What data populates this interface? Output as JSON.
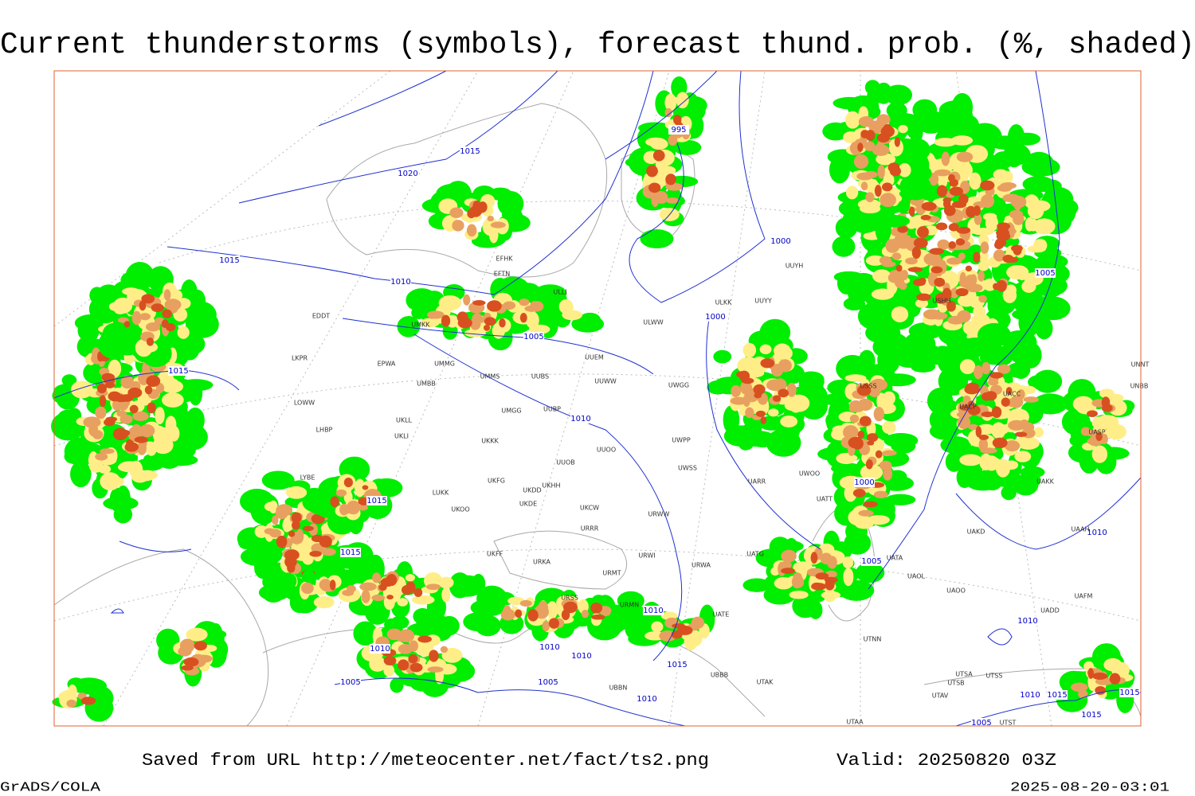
{
  "title": "Current thunderstorms (symbols), forecast thund. prob. (%, shaded)",
  "footer": {
    "source": "Saved from URL http://meteocenter.net/fact/ts2.png",
    "valid": "Valid: 20250820 03Z",
    "software": "GrADS/COLA",
    "timestamp": "2025-08-20-03:01"
  },
  "isobar_labels": [
    "995",
    "1015",
    "1020",
    "1015",
    "1010",
    "1005",
    "1000",
    "1000",
    "1010",
    "1015",
    "1015",
    "1015",
    "1000",
    "1005",
    "1005",
    "1010",
    "1010",
    "1010",
    "1010",
    "1010",
    "1005",
    "1005",
    "1015",
    "1010",
    "1010",
    "1010",
    "1015",
    "1015",
    "1015",
    "1005"
  ],
  "stations": [
    "EDDT",
    "EPWA",
    "UMMG",
    "UMBB",
    "LKPR",
    "LOWW",
    "LHBP",
    "UKLL",
    "UKLI",
    "UMMS",
    "UMGG",
    "UUBS",
    "UUBP",
    "UKKK",
    "UUEM",
    "UUWW",
    "UWGG",
    "UWPP",
    "UUOO",
    "UUOB",
    "UWSS",
    "LUKK",
    "UKOO",
    "UKFG",
    "UKDD",
    "UKHH",
    "UKDE",
    "UKCW",
    "URRR",
    "URWW",
    "URWI",
    "UKFF",
    "URKA",
    "URMT",
    "URSS",
    "URMN",
    "UWOO",
    "UARR",
    "UATG",
    "URWA",
    "UATE",
    "UATT",
    "UATA",
    "UAOL",
    "UAOO",
    "UTNN",
    "UTAK",
    "UBBB",
    "UBBN",
    "UTSA",
    "UTSS",
    "UTSB",
    "UTAV",
    "UTAA",
    "UTST",
    "UAFM",
    "UADD",
    "ULLI",
    "EFHK",
    "EFTN",
    "ULWW",
    "ULKK",
    "UUYY",
    "UUYH",
    "USSS",
    "USHH",
    "UNNT",
    "UNBB",
    "UACC",
    "UACP",
    "UASP",
    "UAKK",
    "UAAH",
    "UAKD",
    "UMKK",
    "LYBE"
  ]
}
